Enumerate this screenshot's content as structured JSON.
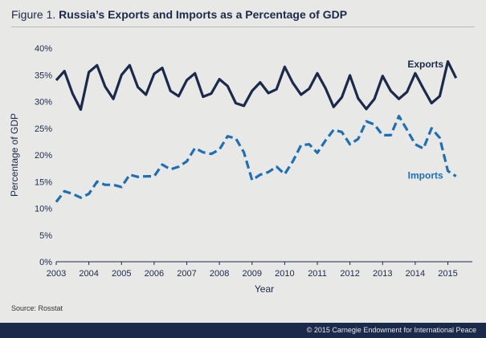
{
  "figure": {
    "label": "Figure 1.",
    "title": "Russia’s Exports and Imports as a Percentage of GDP"
  },
  "source": "Source: Rosstat",
  "copyright": "© 2015 Carnegie Endowment for International Peace",
  "colors": {
    "exports": "#1b2a4a",
    "imports": "#1f6fb5",
    "background": "#e8e8e6",
    "footer": "#1b2a4a"
  },
  "chart_data": {
    "type": "line",
    "xlabel": "Year",
    "ylabel": "Percentage of GDP",
    "xlim": [
      2003,
      2015.75
    ],
    "ylim": [
      0,
      40
    ],
    "x_ticks": [
      2003,
      2004,
      2005,
      2006,
      2007,
      2008,
      2009,
      2010,
      2011,
      2012,
      2013,
      2014,
      2015
    ],
    "y_ticks": [
      0,
      5,
      10,
      15,
      20,
      25,
      30,
      35,
      40
    ],
    "y_tick_labels": [
      "0%",
      "5%",
      "10%",
      "15%",
      "20%",
      "25%",
      "30%",
      "35%",
      "40%"
    ],
    "grid": false,
    "legend": "inline labels at series ends",
    "series": [
      {
        "name": "Exports",
        "style": "solid",
        "x": [
          2003.0,
          2003.25,
          2003.5,
          2003.75,
          2004.0,
          2004.25,
          2004.5,
          2004.75,
          2005.0,
          2005.25,
          2005.5,
          2005.75,
          2006.0,
          2006.25,
          2006.5,
          2006.75,
          2007.0,
          2007.25,
          2007.5,
          2007.75,
          2008.0,
          2008.25,
          2008.5,
          2008.75,
          2009.0,
          2009.25,
          2009.5,
          2009.75,
          2010.0,
          2010.25,
          2010.5,
          2010.75,
          2011.0,
          2011.25,
          2011.5,
          2011.75,
          2012.0,
          2012.25,
          2012.5,
          2012.75,
          2013.0,
          2013.25,
          2013.5,
          2013.75,
          2014.0,
          2014.25,
          2014.5,
          2014.75,
          2015.0,
          2015.25
        ],
        "values": [
          34.0,
          35.7,
          31.5,
          28.5,
          35.5,
          36.8,
          32.8,
          30.5,
          35.0,
          36.8,
          32.7,
          31.3,
          35.2,
          36.3,
          32.0,
          31.0,
          34.0,
          35.3,
          30.9,
          31.5,
          34.2,
          32.9,
          29.7,
          29.2,
          32.0,
          33.6,
          31.6,
          32.3,
          36.5,
          33.5,
          31.3,
          32.4,
          35.3,
          32.5,
          29.0,
          30.8,
          34.9,
          30.6,
          28.6,
          30.5,
          34.8,
          32.0,
          30.5,
          31.8,
          35.3,
          32.4,
          29.7,
          31.0,
          37.5,
          34.4
        ]
      },
      {
        "name": "Imports",
        "style": "dashed",
        "x": [
          2003.0,
          2003.25,
          2003.5,
          2003.75,
          2004.0,
          2004.25,
          2004.5,
          2004.75,
          2005.0,
          2005.25,
          2005.5,
          2005.75,
          2006.0,
          2006.25,
          2006.5,
          2006.75,
          2007.0,
          2007.25,
          2007.5,
          2007.75,
          2008.0,
          2008.25,
          2008.5,
          2008.75,
          2009.0,
          2009.25,
          2009.5,
          2009.75,
          2010.0,
          2010.25,
          2010.5,
          2010.75,
          2011.0,
          2011.25,
          2011.5,
          2011.75,
          2012.0,
          2012.25,
          2012.5,
          2012.75,
          2013.0,
          2013.25,
          2013.5,
          2013.75,
          2014.0,
          2014.25,
          2014.5,
          2014.75,
          2015.0,
          2015.25
        ],
        "values": [
          11.2,
          13.2,
          12.7,
          12.0,
          12.7,
          15.0,
          14.4,
          14.4,
          14.0,
          16.3,
          15.9,
          16.0,
          16.0,
          18.2,
          17.3,
          17.8,
          18.8,
          21.3,
          20.5,
          20.2,
          21.0,
          23.5,
          23.1,
          20.5,
          15.3,
          16.3,
          16.8,
          17.8,
          16.4,
          18.8,
          21.8,
          22.0,
          20.4,
          22.7,
          24.7,
          24.3,
          22.0,
          23.0,
          26.3,
          25.7,
          23.7,
          23.7,
          27.3,
          24.7,
          22.0,
          21.2,
          25.0,
          23.2,
          17.0,
          16.0
        ]
      }
    ]
  }
}
